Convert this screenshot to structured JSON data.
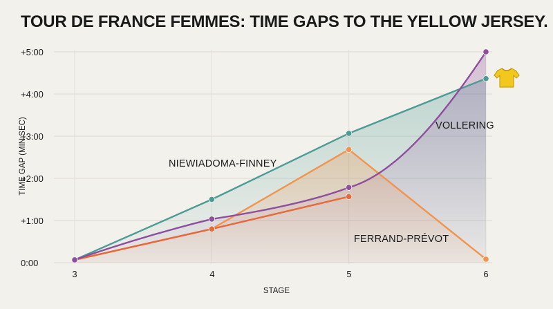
{
  "chart_data": {
    "type": "line",
    "title": "TOUR DE FRANCE FEMMES: TIME GAPS TO THE YELLOW JERSEY.",
    "xlabel": "STAGE",
    "ylabel": "TIME GAP (MIN:SEC)",
    "x": [
      3,
      4,
      5,
      6
    ],
    "x_tick_labels": [
      "3",
      "4",
      "5",
      "6"
    ],
    "y_unit": "seconds",
    "ylim": [
      0,
      300
    ],
    "y_ticks": [
      0,
      60,
      120,
      180,
      240,
      300
    ],
    "y_tick_labels": [
      "0:00",
      "+1:00",
      "+2:00",
      "+3:00",
      "+4:00",
      "+5:00"
    ],
    "grid": true,
    "legend": "none (direct labels)",
    "series": [
      {
        "name": "NIEWIADOMA-FINNEY",
        "color": "#4e9a94",
        "x": [
          3,
          4,
          5,
          6
        ],
        "values": [
          4,
          90,
          184,
          262
        ]
      },
      {
        "name": "VOLLERING",
        "color": "#8e4e9e",
        "x": [
          3,
          4,
          5,
          6
        ],
        "values": [
          4,
          62,
          107,
          300
        ]
      },
      {
        "name": "FERRAND-PRÉVOT",
        "color": "#f0944e",
        "x": [
          3,
          4,
          5,
          6
        ],
        "values": [
          4,
          48,
          161,
          5
        ]
      },
      {
        "name": "",
        "color": "#e8683a",
        "x": [
          3,
          4,
          5
        ],
        "values": [
          4,
          48,
          94
        ]
      }
    ],
    "annotations": [
      {
        "text": "NIEWIADOMA-FINNEY",
        "series": 0
      },
      {
        "text": "VOLLERING",
        "series": 1
      },
      {
        "text": "FERRAND-PRÉVOT",
        "series": 2
      }
    ],
    "icon": "yellow-jersey-icon"
  }
}
